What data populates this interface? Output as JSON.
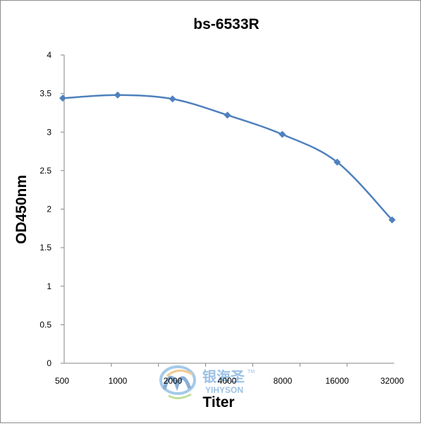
{
  "chart_data": {
    "type": "line",
    "title": "bs-6533R",
    "xlabel": "Titer",
    "ylabel": "OD450nm",
    "categories": [
      "500",
      "1000",
      "2000",
      "4000",
      "8000",
      "16000",
      "32000"
    ],
    "series": [
      {
        "values": [
          3.44,
          3.48,
          3.43,
          3.22,
          2.97,
          2.61,
          1.86
        ]
      }
    ],
    "ylim": [
      0,
      4
    ],
    "yticks": [
      "0",
      "0.5",
      "1",
      "1.5",
      "2",
      "2.5",
      "3",
      "3.5",
      "4"
    ],
    "grid": false,
    "legend": "none",
    "colors": {
      "line": "#4f81bd",
      "axis": "#868686",
      "text": "#000000"
    }
  },
  "watermark": {
    "brand_cn": "银海圣",
    "brand_en": "YIHYSON",
    "tm": "TM"
  }
}
